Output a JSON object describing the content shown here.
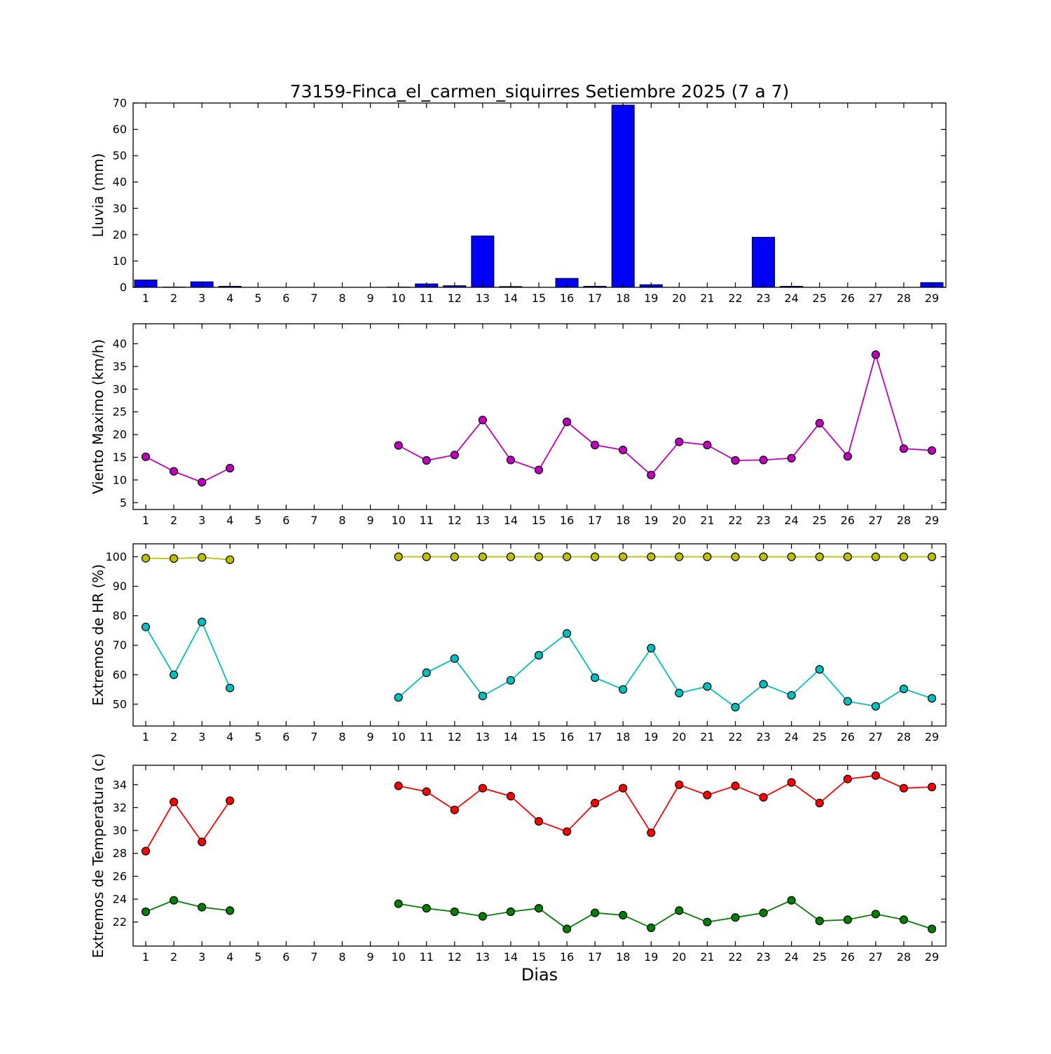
{
  "title": "73159-Finca_el_carmen_siquirres Setiembre 2025  (7 a 7)",
  "xlabel": "Dias",
  "station_id": "73159",
  "days": [
    1,
    2,
    3,
    4,
    5,
    6,
    7,
    8,
    9,
    10,
    11,
    12,
    13,
    14,
    15,
    16,
    17,
    18,
    19,
    20,
    21,
    22,
    23,
    24,
    25,
    26,
    27,
    28,
    29
  ],
  "xlim": [
    0.55,
    29.5
  ],
  "chart_data": [
    {
      "type": "bar",
      "name": "lluvia",
      "ylabel": "Lluvia (mm)",
      "ylim": [
        0,
        70
      ],
      "yticks": [
        0,
        10,
        20,
        30,
        40,
        50,
        60,
        70
      ],
      "bar_color": "#0000ff",
      "bar_edge_color": "#000000",
      "categories": [
        1,
        2,
        3,
        4,
        5,
        6,
        7,
        8,
        9,
        10,
        11,
        12,
        13,
        14,
        15,
        16,
        17,
        18,
        19,
        20,
        21,
        22,
        23,
        24,
        25,
        26,
        27,
        28,
        29
      ],
      "values": [
        2.8,
        0.1,
        2.1,
        0.4,
        0,
        0,
        0,
        0,
        0,
        0.1,
        1.3,
        0.6,
        19.5,
        0.3,
        0,
        3.4,
        0.4,
        69.2,
        1.0,
        0,
        0,
        0,
        19.0,
        0.4,
        0,
        0,
        0,
        0,
        1.8
      ]
    },
    {
      "type": "line",
      "name": "viento-maximo",
      "ylabel": "Viento Maximo (km/h)",
      "ylim": [
        3.5,
        44.4
      ],
      "yticks": [
        5,
        10,
        15,
        20,
        25,
        30,
        35,
        40
      ],
      "categories": [
        1,
        2,
        3,
        4,
        5,
        6,
        7,
        8,
        9,
        10,
        11,
        12,
        13,
        14,
        15,
        16,
        17,
        18,
        19,
        20,
        21,
        22,
        23,
        24,
        25,
        26,
        27,
        28,
        29
      ],
      "series": [
        {
          "name": "viento_maximo",
          "color": "#bf00bf",
          "values": [
            15.1,
            11.9,
            9.5,
            12.6,
            null,
            null,
            null,
            null,
            null,
            17.6,
            14.3,
            15.5,
            23.2,
            14.4,
            12.2,
            22.8,
            17.7,
            16.6,
            11.1,
            18.4,
            17.7,
            14.3,
            14.4,
            14.8,
            22.5,
            15.2,
            37.6,
            16.9,
            16.5
          ]
        }
      ]
    },
    {
      "type": "line",
      "name": "extremos-hr",
      "ylabel": "Extremos de HR (%)",
      "ylim": [
        42.6,
        104.4
      ],
      "yticks": [
        50,
        60,
        70,
        80,
        90,
        100
      ],
      "categories": [
        1,
        2,
        3,
        4,
        5,
        6,
        7,
        8,
        9,
        10,
        11,
        12,
        13,
        14,
        15,
        16,
        17,
        18,
        19,
        20,
        21,
        22,
        23,
        24,
        25,
        26,
        27,
        28,
        29
      ],
      "series": [
        {
          "name": "hr_maxima",
          "color": "#bfbf00",
          "values": [
            99.5,
            99.4,
            99.8,
            99.0,
            null,
            null,
            null,
            null,
            null,
            100,
            100,
            100,
            100,
            100,
            100,
            100,
            100,
            100,
            100,
            100,
            100,
            100,
            100,
            100,
            100,
            100,
            100,
            100,
            100
          ]
        },
        {
          "name": "hr_minima",
          "color": "#00bfbf",
          "values": [
            76.2,
            60.0,
            77.9,
            55.5,
            null,
            null,
            null,
            null,
            null,
            52.3,
            60.7,
            65.5,
            52.8,
            58.1,
            66.6,
            74.0,
            59.0,
            55.0,
            69.0,
            53.8,
            56.0,
            49.0,
            56.8,
            53.0,
            61.8,
            51.0,
            49.3,
            55.2,
            52.0
          ]
        }
      ]
    },
    {
      "type": "line",
      "name": "extremos-temperatura",
      "ylabel": "Extremos de Temperatura (c)",
      "ylim": [
        19.9,
        35.7
      ],
      "yticks": [
        22,
        24,
        26,
        28,
        30,
        32,
        34
      ],
      "categories": [
        1,
        2,
        3,
        4,
        5,
        6,
        7,
        8,
        9,
        10,
        11,
        12,
        13,
        14,
        15,
        16,
        17,
        18,
        19,
        20,
        21,
        22,
        23,
        24,
        25,
        26,
        27,
        28,
        29
      ],
      "series": [
        {
          "name": "temperatura_maxima",
          "color": "#ff0000",
          "values": [
            28.2,
            32.5,
            29.0,
            32.6,
            null,
            null,
            null,
            null,
            null,
            33.9,
            33.4,
            31.8,
            33.7,
            33.0,
            30.8,
            29.9,
            32.4,
            33.7,
            29.8,
            34.0,
            33.1,
            33.9,
            32.9,
            34.2,
            32.4,
            34.5,
            34.8,
            33.7,
            33.8
          ]
        },
        {
          "name": "temperatura_minima",
          "color": "#007f00",
          "values": [
            22.9,
            23.9,
            23.3,
            23.0,
            null,
            null,
            null,
            null,
            null,
            23.6,
            23.2,
            22.9,
            22.5,
            22.9,
            23.2,
            21.4,
            22.8,
            22.6,
            21.5,
            23.0,
            22.0,
            22.4,
            22.8,
            23.9,
            22.1,
            22.2,
            22.7,
            22.2,
            21.4
          ]
        }
      ]
    }
  ]
}
